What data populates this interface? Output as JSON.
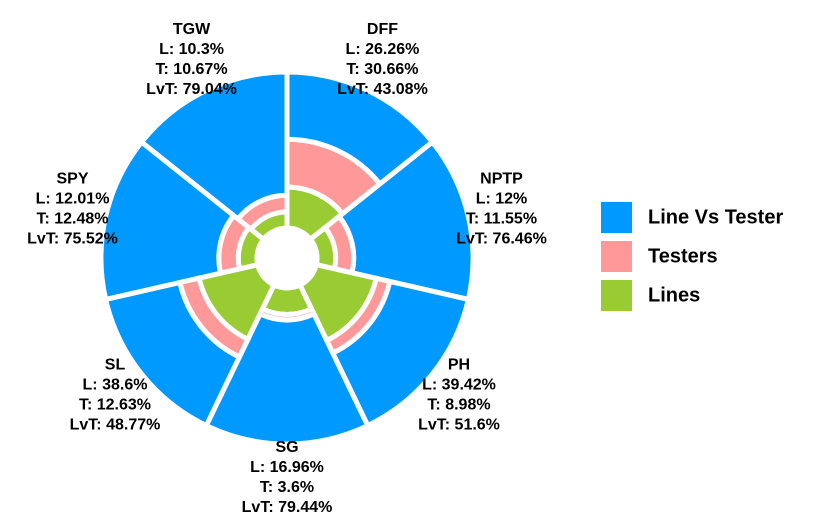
{
  "chart_data": {
    "type": "polar-stacked-bar",
    "categories": [
      "DFF",
      "NPTP",
      "PH",
      "SG",
      "SL",
      "SPY",
      "TGW"
    ],
    "series": [
      {
        "name": "Line Vs Tester",
        "color": "#0099ff",
        "values": [
          43.08,
          76.46,
          51.6,
          79.44,
          48.77,
          75.52,
          79.04
        ],
        "value_labels": [
          "LvT: 43.08%",
          "LvT: 76.46%",
          "LvT: 51.6%",
          "LvT: 79.44%",
          "LvT: 48.77%",
          "LvT: 75.52%",
          "LvT: 79.04%"
        ]
      },
      {
        "name": "Testers",
        "color": "#ff9999",
        "values": [
          30.66,
          11.55,
          8.98,
          3.6,
          12.63,
          12.48,
          10.67
        ],
        "value_labels": [
          "T: 30.66%",
          "T: 11.55%",
          "T: 8.98%",
          "T: 3.6%",
          "T: 12.63%",
          "T: 12.48%",
          "T: 10.67%"
        ]
      },
      {
        "name": "Lines",
        "color": "#99cc33",
        "values": [
          26.26,
          12,
          39.42,
          16.96,
          38.6,
          12.01,
          10.3
        ],
        "value_labels": [
          "L: 26.26%",
          "L: 12%",
          "L: 39.42%",
          "L: 16.96%",
          "L: 38.6%",
          "L: 12.01%",
          "L: 10.3%"
        ]
      }
    ],
    "rlim": [
      0,
      100
    ]
  }
}
